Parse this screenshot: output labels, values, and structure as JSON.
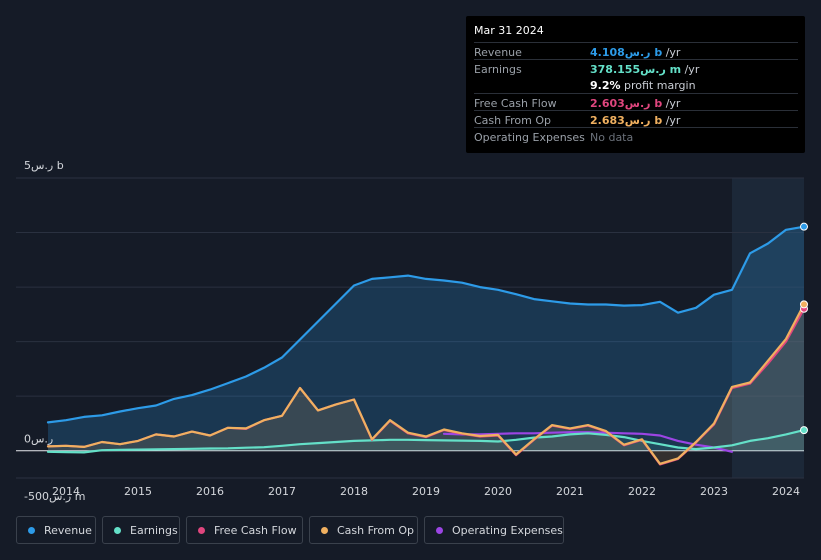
{
  "tooltip": {
    "date": "Mar 31 2024",
    "rows": [
      {
        "label": "Revenue",
        "value": "4.108ر.س b",
        "unit": " /yr",
        "color": "#2d9be8"
      },
      {
        "label": "Earnings",
        "value": "378.155ر.س m",
        "unit": " /yr",
        "color": "#64e0c8"
      },
      {
        "label": "",
        "value": "9.2%",
        "unit": " profit margin",
        "color": "#ffffff"
      },
      {
        "label": "Free Cash Flow",
        "value": "2.603ر.س b",
        "unit": " /yr",
        "color": "#e0467e"
      },
      {
        "label": "Cash From Op",
        "value": "2.683ر.س b",
        "unit": " /yr",
        "color": "#f0b060"
      },
      {
        "label": "Operating Expenses",
        "value": "No data",
        "unit": "",
        "color": "#6b717a"
      }
    ]
  },
  "legend": [
    {
      "label": "Revenue",
      "color": "#2d9be8"
    },
    {
      "label": "Earnings",
      "color": "#64e0c8"
    },
    {
      "label": "Free Cash Flow",
      "color": "#e0467e"
    },
    {
      "label": "Cash From Op",
      "color": "#f0b060"
    },
    {
      "label": "Operating Expenses",
      "color": "#9b45e4"
    }
  ],
  "chart_data": {
    "type": "line",
    "unit": "SAR millions",
    "y_tick_labels": [
      "5ر.س b",
      "0ر.س",
      "-500ر.س m"
    ],
    "x_tick_labels": [
      "2014",
      "2015",
      "2016",
      "2017",
      "2018",
      "2019",
      "2020",
      "2021",
      "2022",
      "2023",
      "2024"
    ],
    "ylim": [
      -500,
      5000
    ],
    "xlim": [
      2013.75,
      2024.25
    ],
    "forecast_shade_start": 2023.25,
    "series": [
      {
        "name": "Revenue",
        "color": "#2d9be8",
        "area": true,
        "points": [
          [
            2013.75,
            520
          ],
          [
            2014.0,
            560
          ],
          [
            2014.25,
            620
          ],
          [
            2014.5,
            650
          ],
          [
            2014.75,
            720
          ],
          [
            2015.0,
            780
          ],
          [
            2015.25,
            830
          ],
          [
            2015.5,
            950
          ],
          [
            2015.75,
            1020
          ],
          [
            2016.0,
            1120
          ],
          [
            2016.25,
            1240
          ],
          [
            2016.5,
            1360
          ],
          [
            2016.75,
            1520
          ],
          [
            2017.0,
            1710
          ],
          [
            2017.25,
            2040
          ],
          [
            2017.5,
            2370
          ],
          [
            2017.75,
            2700
          ],
          [
            2018.0,
            3030
          ],
          [
            2018.25,
            3150
          ],
          [
            2018.5,
            3180
          ],
          [
            2018.75,
            3210
          ],
          [
            2019.0,
            3150
          ],
          [
            2019.25,
            3120
          ],
          [
            2019.5,
            3080
          ],
          [
            2019.75,
            3000
          ],
          [
            2020.0,
            2950
          ],
          [
            2020.25,
            2870
          ],
          [
            2020.5,
            2780
          ],
          [
            2020.75,
            2740
          ],
          [
            2021.0,
            2700
          ],
          [
            2021.25,
            2680
          ],
          [
            2021.5,
            2680
          ],
          [
            2021.75,
            2660
          ],
          [
            2022.0,
            2670
          ],
          [
            2022.25,
            2730
          ],
          [
            2022.5,
            2530
          ],
          [
            2022.75,
            2620
          ],
          [
            2023.0,
            2860
          ],
          [
            2023.25,
            2950
          ],
          [
            2023.5,
            3620
          ],
          [
            2023.75,
            3800
          ],
          [
            2024.0,
            4050
          ],
          [
            2024.25,
            4108
          ]
        ]
      },
      {
        "name": "Earnings",
        "color": "#64e0c8",
        "area": true,
        "points": [
          [
            2013.75,
            -20
          ],
          [
            2014.0,
            -25
          ],
          [
            2014.25,
            -30
          ],
          [
            2014.5,
            10
          ],
          [
            2014.75,
            15
          ],
          [
            2015.0,
            20
          ],
          [
            2015.25,
            25
          ],
          [
            2015.5,
            30
          ],
          [
            2015.75,
            35
          ],
          [
            2016.0,
            40
          ],
          [
            2016.25,
            45
          ],
          [
            2016.5,
            55
          ],
          [
            2016.75,
            65
          ],
          [
            2017.0,
            90
          ],
          [
            2017.25,
            120
          ],
          [
            2017.5,
            140
          ],
          [
            2017.75,
            160
          ],
          [
            2018.0,
            180
          ],
          [
            2018.25,
            190
          ],
          [
            2018.5,
            200
          ],
          [
            2018.75,
            200
          ],
          [
            2019.0,
            195
          ],
          [
            2019.25,
            190
          ],
          [
            2019.5,
            185
          ],
          [
            2019.75,
            180
          ],
          [
            2020.0,
            170
          ],
          [
            2020.25,
            200
          ],
          [
            2020.5,
            240
          ],
          [
            2020.75,
            260
          ],
          [
            2021.0,
            300
          ],
          [
            2021.25,
            320
          ],
          [
            2021.5,
            290
          ],
          [
            2021.75,
            250
          ],
          [
            2022.0,
            180
          ],
          [
            2022.25,
            120
          ],
          [
            2022.5,
            60
          ],
          [
            2022.75,
            30
          ],
          [
            2023.0,
            60
          ],
          [
            2023.25,
            100
          ],
          [
            2023.5,
            180
          ],
          [
            2023.75,
            230
          ],
          [
            2024.0,
            300
          ],
          [
            2024.25,
            378
          ]
        ]
      },
      {
        "name": "Free Cash Flow",
        "color": "#e0467e",
        "area": false,
        "points": [
          [
            2013.75,
            80
          ],
          [
            2014.0,
            90
          ],
          [
            2014.25,
            70
          ],
          [
            2014.5,
            160
          ],
          [
            2014.75,
            120
          ],
          [
            2015.0,
            180
          ],
          [
            2015.25,
            300
          ],
          [
            2015.5,
            260
          ],
          [
            2015.75,
            350
          ],
          [
            2016.0,
            280
          ],
          [
            2016.25,
            420
          ],
          [
            2016.5,
            400
          ],
          [
            2016.75,
            560
          ],
          [
            2017.0,
            640
          ],
          [
            2017.25,
            1150
          ],
          [
            2017.5,
            740
          ],
          [
            2017.75,
            850
          ],
          [
            2018.0,
            940
          ],
          [
            2018.25,
            200
          ],
          [
            2018.5,
            550
          ],
          [
            2018.75,
            320
          ],
          [
            2019.0,
            250
          ],
          [
            2019.25,
            380
          ],
          [
            2019.5,
            310
          ],
          [
            2019.75,
            260
          ],
          [
            2020.0,
            280
          ],
          [
            2020.25,
            -80
          ],
          [
            2020.5,
            200
          ],
          [
            2020.75,
            460
          ],
          [
            2021.0,
            400
          ],
          [
            2021.25,
            460
          ],
          [
            2021.5,
            350
          ],
          [
            2021.75,
            100
          ],
          [
            2022.0,
            200
          ],
          [
            2022.25,
            -250
          ],
          [
            2022.5,
            -150
          ],
          [
            2022.75,
            150
          ],
          [
            2023.0,
            480
          ],
          [
            2023.25,
            1150
          ],
          [
            2023.5,
            1230
          ],
          [
            2023.75,
            1600
          ],
          [
            2024.0,
            2000
          ],
          [
            2024.25,
            2603
          ]
        ]
      },
      {
        "name": "Cash From Op",
        "color": "#f0b060",
        "area": true,
        "points": [
          [
            2013.75,
            80
          ],
          [
            2014.0,
            90
          ],
          [
            2014.25,
            70
          ],
          [
            2014.5,
            160
          ],
          [
            2014.75,
            120
          ],
          [
            2015.0,
            180
          ],
          [
            2015.25,
            300
          ],
          [
            2015.5,
            260
          ],
          [
            2015.75,
            350
          ],
          [
            2016.0,
            280
          ],
          [
            2016.25,
            420
          ],
          [
            2016.5,
            410
          ],
          [
            2016.75,
            560
          ],
          [
            2017.0,
            640
          ],
          [
            2017.25,
            1150
          ],
          [
            2017.5,
            740
          ],
          [
            2017.75,
            850
          ],
          [
            2018.0,
            940
          ],
          [
            2018.25,
            210
          ],
          [
            2018.5,
            560
          ],
          [
            2018.75,
            330
          ],
          [
            2019.0,
            260
          ],
          [
            2019.25,
            390
          ],
          [
            2019.5,
            320
          ],
          [
            2019.75,
            270
          ],
          [
            2020.0,
            290
          ],
          [
            2020.25,
            -70
          ],
          [
            2020.5,
            210
          ],
          [
            2020.75,
            470
          ],
          [
            2021.0,
            410
          ],
          [
            2021.25,
            470
          ],
          [
            2021.5,
            360
          ],
          [
            2021.75,
            110
          ],
          [
            2022.0,
            210
          ],
          [
            2022.25,
            -240
          ],
          [
            2022.5,
            -140
          ],
          [
            2022.75,
            160
          ],
          [
            2023.0,
            500
          ],
          [
            2023.25,
            1170
          ],
          [
            2023.5,
            1250
          ],
          [
            2023.75,
            1650
          ],
          [
            2024.0,
            2050
          ],
          [
            2024.25,
            2683
          ]
        ]
      },
      {
        "name": "Operating Expenses",
        "color": "#9b45e4",
        "area": false,
        "points": [
          [
            2019.25,
            310
          ],
          [
            2019.5,
            300
          ],
          [
            2019.75,
            300
          ],
          [
            2020.0,
            310
          ],
          [
            2020.25,
            320
          ],
          [
            2020.5,
            320
          ],
          [
            2020.75,
            330
          ],
          [
            2021.0,
            340
          ],
          [
            2021.25,
            340
          ],
          [
            2021.5,
            330
          ],
          [
            2021.75,
            320
          ],
          [
            2022.0,
            310
          ],
          [
            2022.25,
            280
          ],
          [
            2022.5,
            180
          ],
          [
            2022.75,
            110
          ],
          [
            2023.0,
            60
          ],
          [
            2023.25,
            -20
          ]
        ]
      }
    ]
  }
}
